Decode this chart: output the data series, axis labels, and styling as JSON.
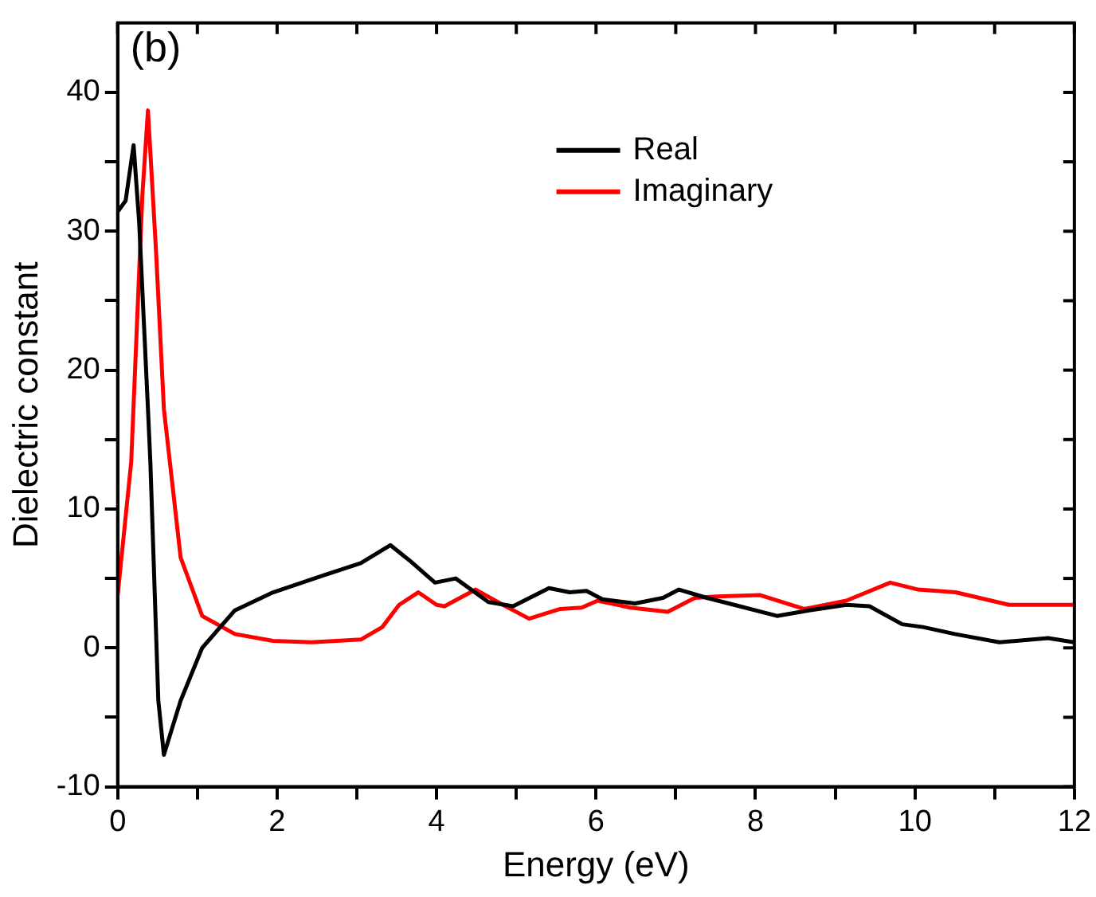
{
  "chart_data": {
    "type": "line",
    "xlabel": "Energy (eV)",
    "ylabel": "Dielectric constant",
    "annotations": [
      "(b)"
    ],
    "xlim": [
      0,
      12
    ],
    "ylim": [
      -10,
      45
    ],
    "xticks": [
      0,
      {
        "value": 1,
        "label": null
      },
      2,
      {
        "value": 3,
        "label": null
      },
      4,
      {
        "value": 5,
        "label": null
      },
      6,
      {
        "value": 7,
        "label": null
      },
      8,
      {
        "value": 9,
        "label": null
      },
      10,
      {
        "value": 11,
        "label": null
      },
      12
    ],
    "yticks": [
      -10,
      {
        "value": -5,
        "label": null
      },
      0,
      {
        "value": 5,
        "label": null
      },
      10,
      {
        "value": 15,
        "label": null
      },
      20,
      {
        "value": 25,
        "label": null
      },
      30,
      {
        "value": 35,
        "label": null
      },
      40
    ],
    "legend": "top right",
    "marker": "none",
    "line_style": "solid",
    "grid": false,
    "series": [
      {
        "name": "Real",
        "color": "#000000",
        "x": [
          0,
          0.1,
          0.2,
          0.27,
          0.38,
          0.41,
          0.51,
          0.58,
          0.79,
          1.06,
          1.47,
          1.95,
          2.57,
          3.05,
          3.42,
          3.66,
          3.98,
          4.24,
          4.65,
          4.96,
          5.41,
          5.67,
          5.88,
          6.08,
          6.49,
          6.84,
          7.04,
          7.39,
          7.8,
          8.27,
          8.67,
          9.14,
          9.43,
          9.84,
          10.1,
          10.5,
          11.06,
          11.67,
          12
        ],
        "values": [
          31.4,
          32.2,
          36.2,
          30.6,
          17.2,
          13.4,
          -3.8,
          -7.7,
          -3.8,
          0,
          2.7,
          4.0,
          5.2,
          6.1,
          7.4,
          6.3,
          4.7,
          5.0,
          3.3,
          3.0,
          4.3,
          4.0,
          4.1,
          3.5,
          3.2,
          3.6,
          4.2,
          3.6,
          3.0,
          2.3,
          2.7,
          3.1,
          3.0,
          1.7,
          1.5,
          1.0,
          0.4,
          0.7,
          0.4
        ]
      },
      {
        "name": "Imaginary",
        "color": "#ff0000",
        "x": [
          0,
          0.17,
          0.31,
          0.38,
          0.48,
          0.58,
          0.79,
          1.06,
          1.47,
          1.95,
          2.43,
          3.05,
          3.32,
          3.53,
          3.77,
          4.0,
          4.1,
          4.49,
          4.8,
          5.16,
          5.55,
          5.82,
          6.02,
          6.43,
          6.9,
          7.24,
          7.51,
          8.06,
          8.61,
          9.14,
          9.69,
          10.04,
          10.51,
          11.18,
          12
        ],
        "values": [
          3.8,
          13.4,
          32.6,
          38.7,
          28.7,
          17.2,
          6.5,
          2.3,
          1.0,
          0.5,
          0.4,
          0.6,
          1.5,
          3.1,
          4.0,
          3.1,
          3.0,
          4.2,
          3.2,
          2.1,
          2.8,
          2.9,
          3.4,
          2.9,
          2.6,
          3.6,
          3.7,
          3.8,
          2.8,
          3.4,
          4.7,
          4.2,
          4.0,
          3.1,
          3.1
        ]
      }
    ]
  }
}
